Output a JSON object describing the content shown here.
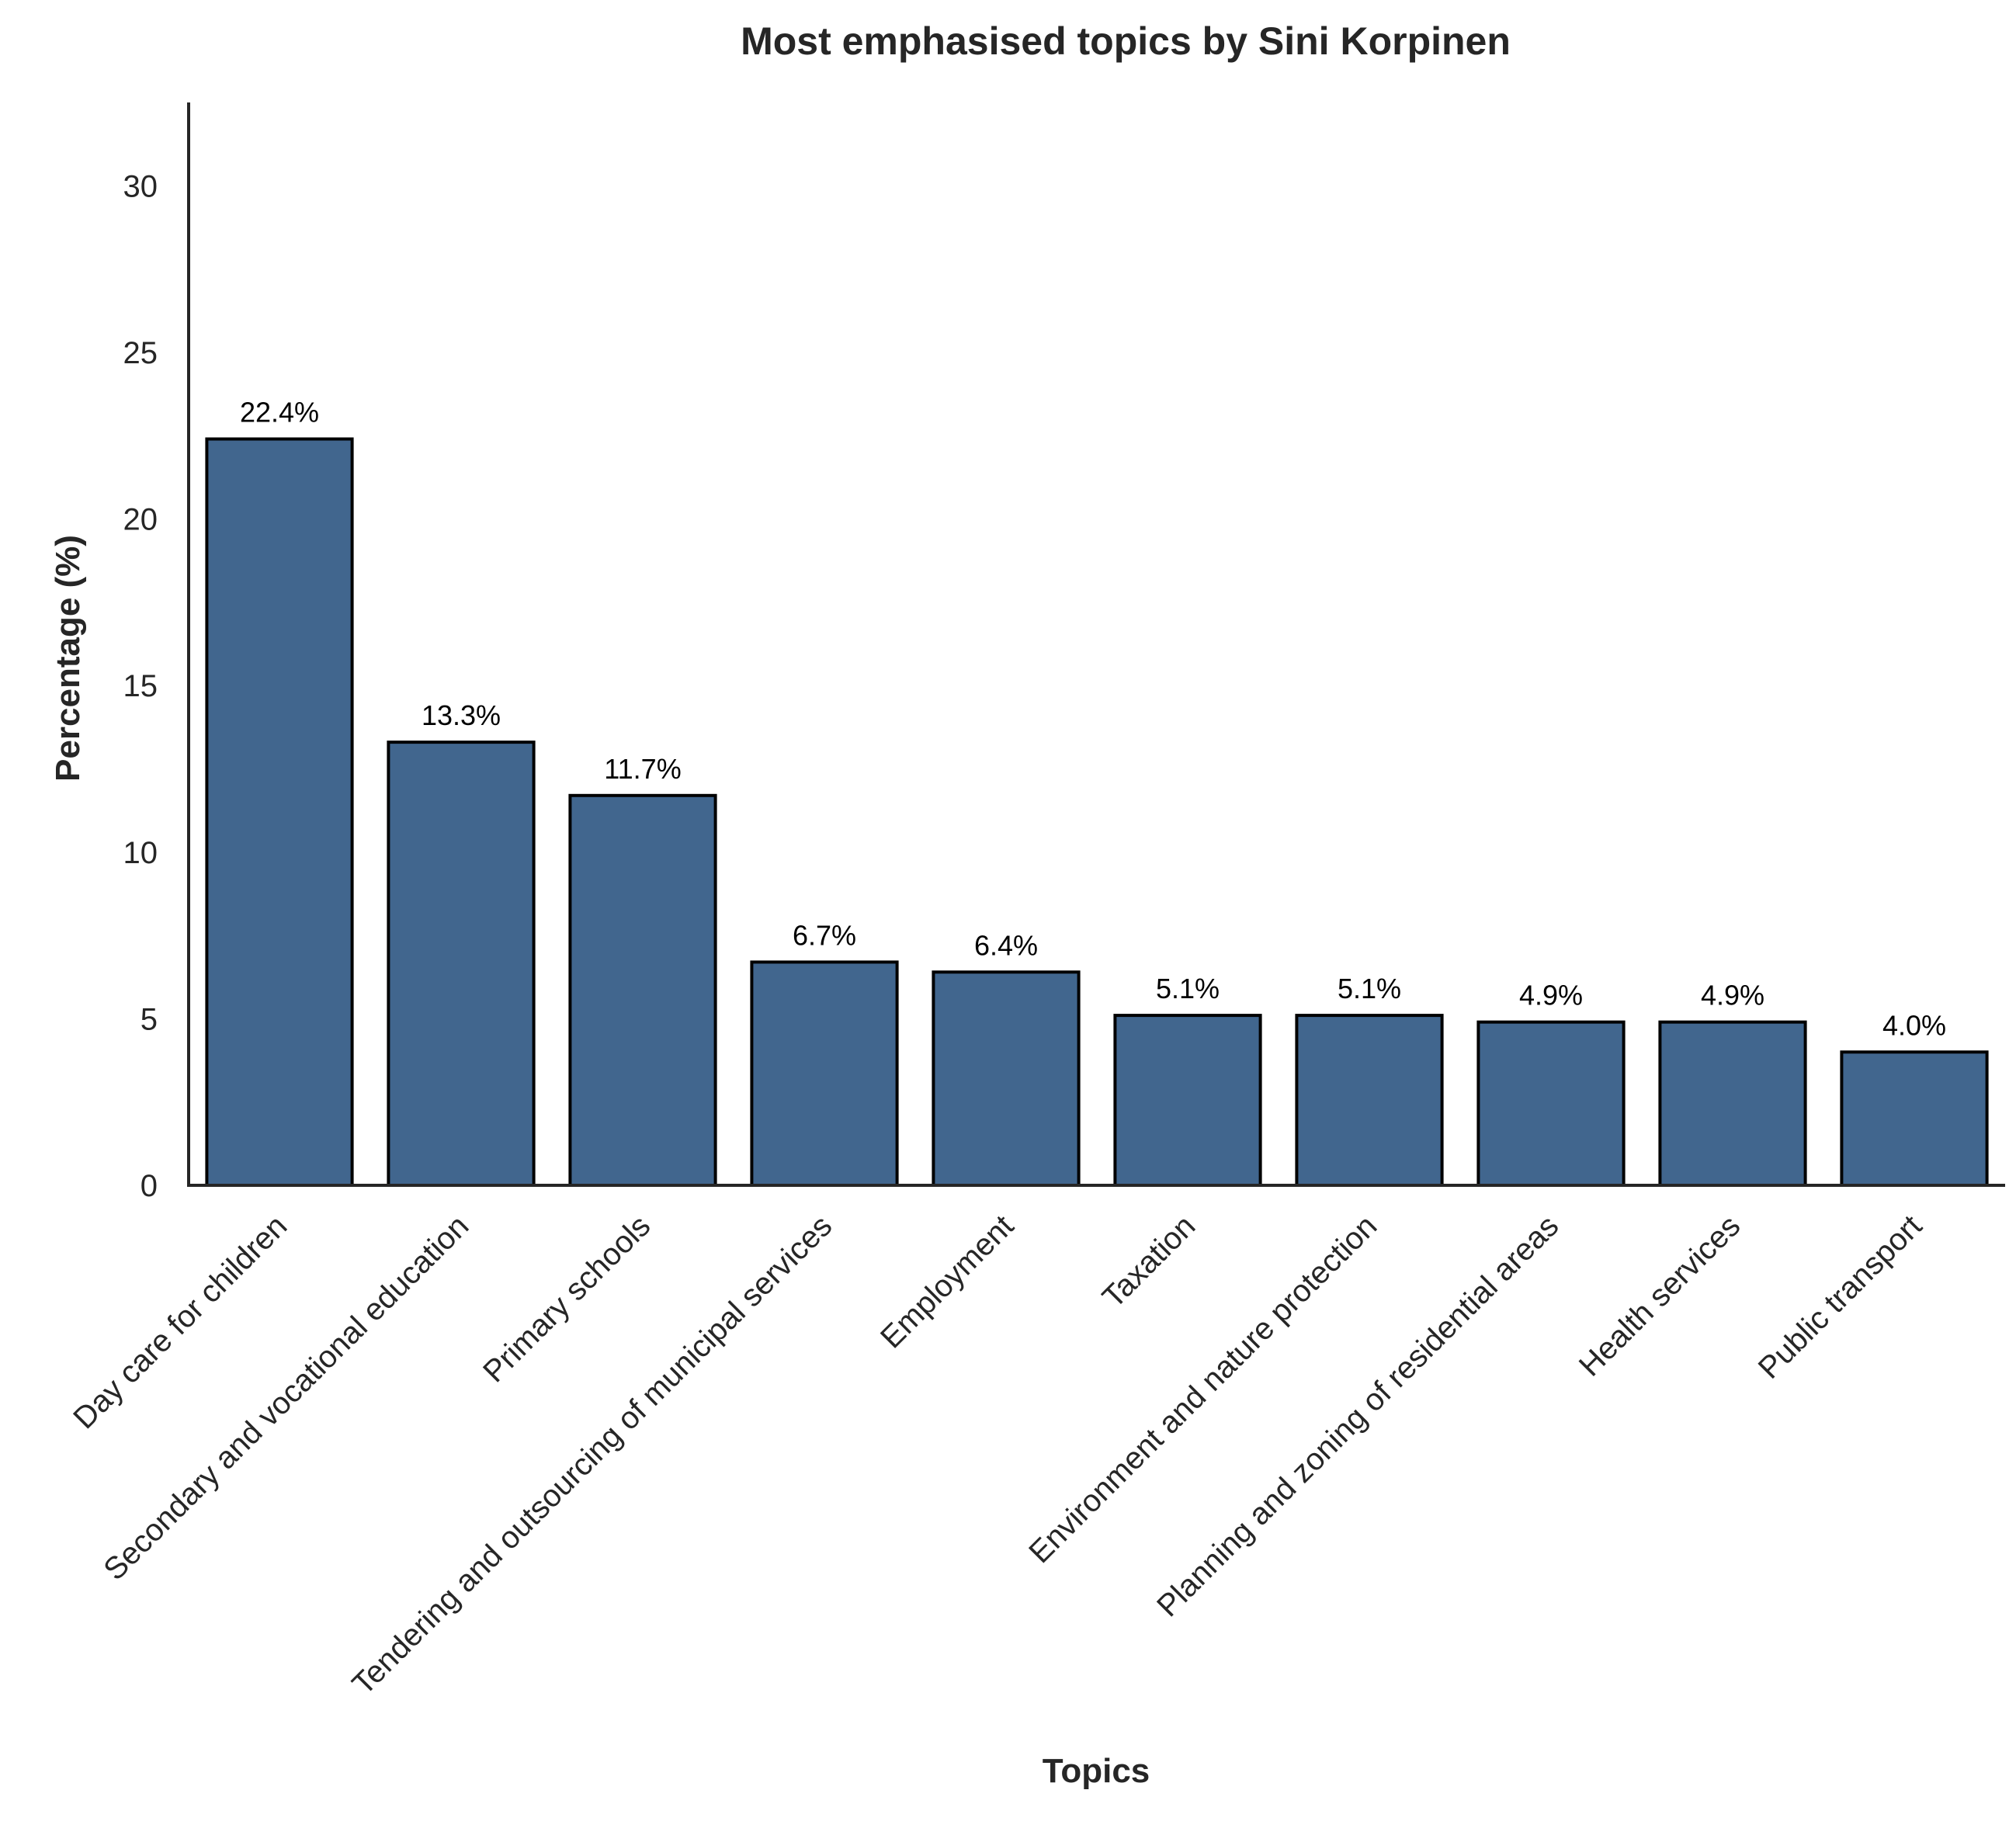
{
  "chart_data": {
    "type": "bar",
    "title": "Most emphasised topics by Sini Korpinen",
    "xlabel": "Topics",
    "ylabel": "Percentage (%)",
    "ylim": [
      0,
      32.5
    ],
    "yticks": [
      0,
      5,
      10,
      15,
      20,
      25,
      30
    ],
    "categories": [
      "Day care for children",
      "Secondary and vocational education",
      "Primary schools",
      "Tendering and outsourcing of municipal services",
      "Employment",
      "Taxation",
      "Environment and nature protection",
      "Planning and zoning of residential areas",
      "Health services",
      "Public transport"
    ],
    "values": [
      22.4,
      13.3,
      11.7,
      6.7,
      6.4,
      5.1,
      5.1,
      4.9,
      4.9,
      4.0
    ],
    "value_labels": [
      "22.4%",
      "13.3%",
      "11.7%",
      "6.7%",
      "6.4%",
      "5.1%",
      "5.1%",
      "4.9%",
      "4.9%",
      "4.0%"
    ],
    "bar_color": "#41668e",
    "edge_color": "#000000",
    "grid": false,
    "legend": "none"
  }
}
